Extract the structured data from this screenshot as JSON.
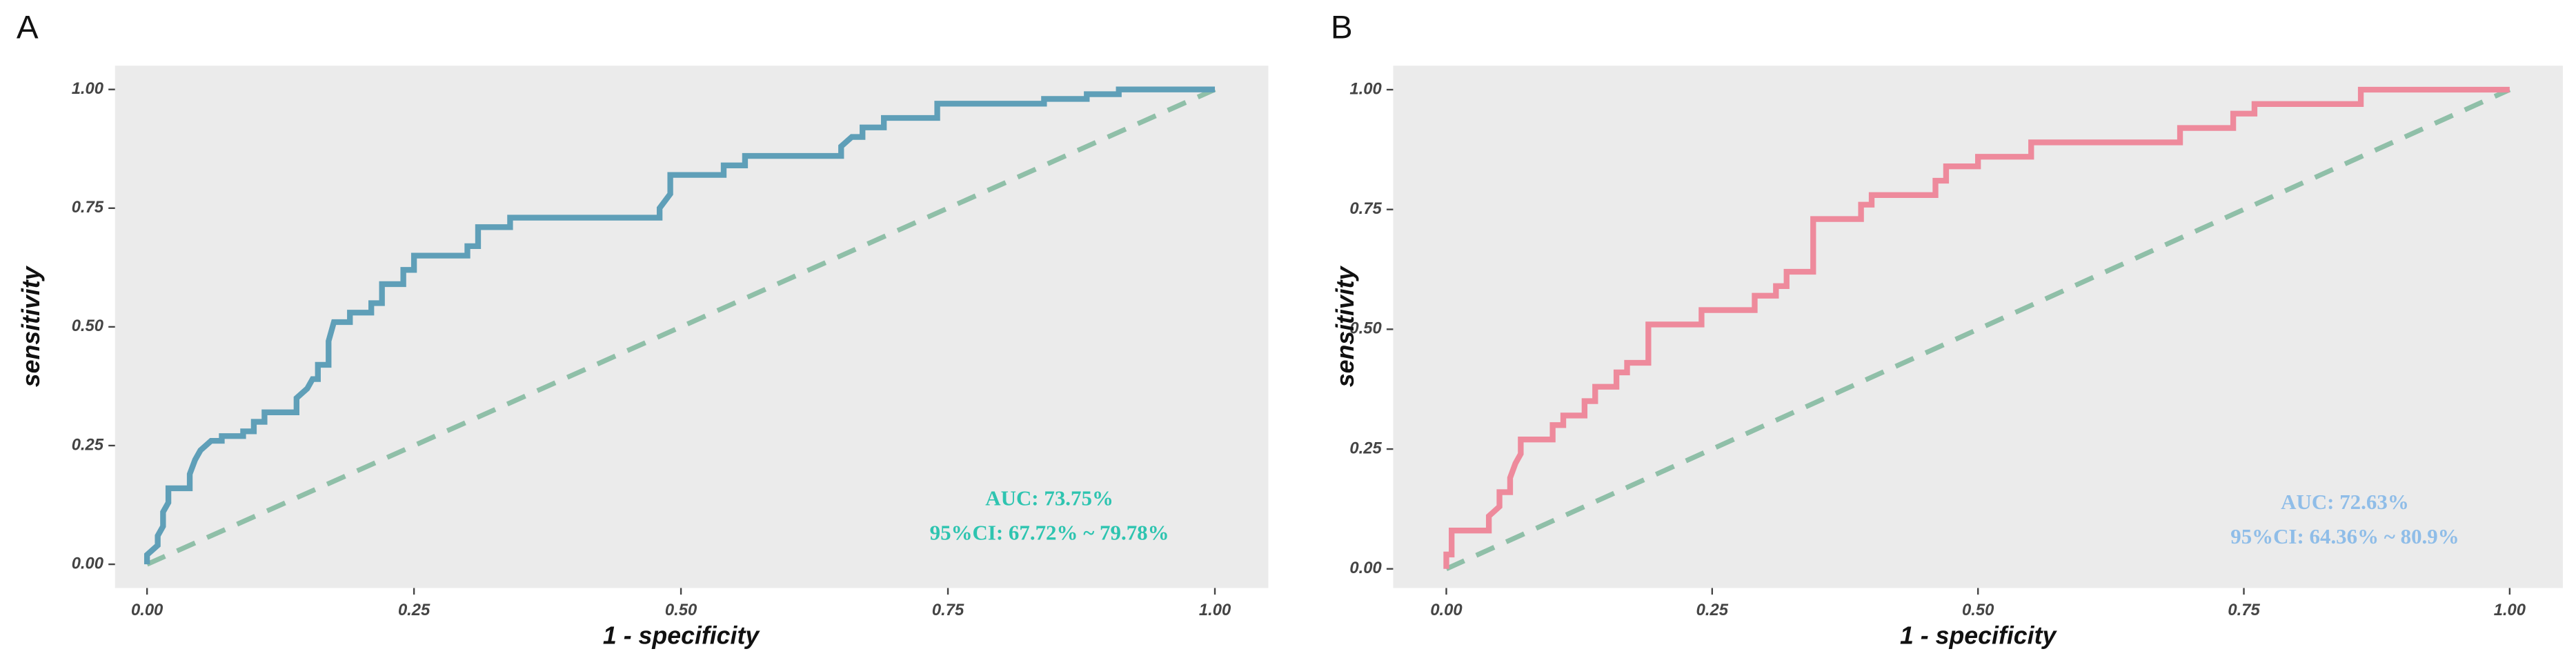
{
  "chart_data": [
    {
      "type": "line",
      "panel_label": "A",
      "xlabel": "1 - specificity",
      "ylabel": "sensitivity",
      "annotations": [
        "AUC: 73.75%",
        "95%CI: 67.72% ~ 79.78%"
      ],
      "annotation_color": "#2ec4b0",
      "xlim": [
        -0.03,
        1.05
      ],
      "ylim": [
        -0.05,
        1.05
      ],
      "xticks": [
        {
          "value": 0,
          "label": "0.00"
        },
        {
          "value": 0.25,
          "label": "0.25"
        },
        {
          "value": 0.5,
          "label": "0.50"
        },
        {
          "value": 0.75,
          "label": "0.75"
        },
        {
          "value": 1,
          "label": "1.00"
        }
      ],
      "yticks": [
        {
          "value": 0,
          "label": "0.00"
        },
        {
          "value": 0.25,
          "label": "0.25"
        },
        {
          "value": 0.5,
          "label": "0.50"
        },
        {
          "value": 0.75,
          "label": "0.75"
        },
        {
          "value": 1,
          "label": "1.00"
        }
      ],
      "series": [
        {
          "color": "#5f9fb8",
          "dashed": false,
          "x": [
            0,
            0,
            0.01,
            0.01,
            0.015,
            0.015,
            0.02,
            0.02,
            0.04,
            0.04,
            0.045,
            0.05,
            0.06,
            0.07,
            0.07,
            0.09,
            0.09,
            0.1,
            0.1,
            0.11,
            0.11,
            0.14,
            0.14,
            0.15,
            0.155,
            0.16,
            0.16,
            0.17,
            0.17,
            0.175,
            0.19,
            0.19,
            0.21,
            0.21,
            0.22,
            0.22,
            0.24,
            0.24,
            0.25,
            0.25,
            0.3,
            0.3,
            0.31,
            0.31,
            0.34,
            0.34,
            0.48,
            0.48,
            0.49,
            0.49,
            0.54,
            0.54,
            0.56,
            0.56,
            0.65,
            0.65,
            0.66,
            0.67,
            0.67,
            0.69,
            0.69,
            0.74,
            0.74,
            0.84,
            0.84,
            0.88,
            0.88,
            0.91,
            0.91,
            1
          ],
          "values": [
            0,
            0.02,
            0.04,
            0.06,
            0.08,
            0.11,
            0.13,
            0.16,
            0.16,
            0.19,
            0.22,
            0.24,
            0.26,
            0.26,
            0.27,
            0.27,
            0.28,
            0.28,
            0.3,
            0.3,
            0.32,
            0.32,
            0.35,
            0.37,
            0.39,
            0.39,
            0.42,
            0.42,
            0.47,
            0.51,
            0.51,
            0.53,
            0.53,
            0.55,
            0.55,
            0.59,
            0.59,
            0.62,
            0.62,
            0.65,
            0.65,
            0.67,
            0.67,
            0.71,
            0.71,
            0.73,
            0.73,
            0.75,
            0.78,
            0.82,
            0.82,
            0.84,
            0.84,
            0.86,
            0.86,
            0.88,
            0.9,
            0.9,
            0.92,
            0.92,
            0.94,
            0.94,
            0.97,
            0.97,
            0.98,
            0.98,
            0.99,
            0.99,
            1,
            1
          ]
        },
        {
          "color": "#8fbfa8",
          "dashed": true,
          "x": [
            0,
            1
          ],
          "values": [
            0,
            1
          ]
        }
      ]
    },
    {
      "type": "line",
      "panel_label": "B",
      "xlabel": "1 - specificity",
      "ylabel": "sensitivity",
      "annotations": [
        "AUC: 72.63%",
        "95%CI: 64.36% ~ 80.9%"
      ],
      "annotation_color": "#8fbde8",
      "xlim": [
        -0.05,
        1.05
      ],
      "ylim": [
        -0.04,
        1.05
      ],
      "xticks": [
        {
          "value": 0,
          "label": "0.00"
        },
        {
          "value": 0.25,
          "label": "0.25"
        },
        {
          "value": 0.5,
          "label": "0.50"
        },
        {
          "value": 0.75,
          "label": "0.75"
        },
        {
          "value": 1,
          "label": "1.00"
        }
      ],
      "yticks": [
        {
          "value": 0,
          "label": "0.00"
        },
        {
          "value": 0.25,
          "label": "0.25"
        },
        {
          "value": 0.5,
          "label": "0.50"
        },
        {
          "value": 0.75,
          "label": "0.75"
        },
        {
          "value": 1,
          "label": "1.00"
        }
      ],
      "series": [
        {
          "color": "#ee8a9c",
          "dashed": false,
          "x": [
            0,
            0,
            0.005,
            0.005,
            0.04,
            0.04,
            0.05,
            0.05,
            0.06,
            0.06,
            0.065,
            0.07,
            0.07,
            0.1,
            0.1,
            0.11,
            0.11,
            0.13,
            0.13,
            0.14,
            0.14,
            0.16,
            0.16,
            0.17,
            0.17,
            0.19,
            0.19,
            0.24,
            0.24,
            0.29,
            0.29,
            0.31,
            0.31,
            0.32,
            0.32,
            0.345,
            0.345,
            0.39,
            0.39,
            0.4,
            0.4,
            0.46,
            0.46,
            0.47,
            0.47,
            0.5,
            0.5,
            0.55,
            0.55,
            0.69,
            0.69,
            0.74,
            0.74,
            0.76,
            0.76,
            0.86,
            0.86,
            1
          ],
          "values": [
            0,
            0.03,
            0.03,
            0.08,
            0.08,
            0.11,
            0.13,
            0.16,
            0.16,
            0.19,
            0.22,
            0.24,
            0.27,
            0.27,
            0.3,
            0.3,
            0.32,
            0.32,
            0.35,
            0.35,
            0.38,
            0.38,
            0.41,
            0.41,
            0.43,
            0.43,
            0.51,
            0.51,
            0.54,
            0.54,
            0.57,
            0.57,
            0.59,
            0.59,
            0.62,
            0.62,
            0.73,
            0.73,
            0.76,
            0.76,
            0.78,
            0.78,
            0.81,
            0.81,
            0.84,
            0.84,
            0.86,
            0.86,
            0.89,
            0.89,
            0.92,
            0.92,
            0.95,
            0.95,
            0.97,
            0.97,
            1,
            1
          ]
        },
        {
          "color": "#8fbfa8",
          "dashed": true,
          "x": [
            0,
            1
          ],
          "values": [
            0,
            1
          ]
        }
      ]
    }
  ]
}
